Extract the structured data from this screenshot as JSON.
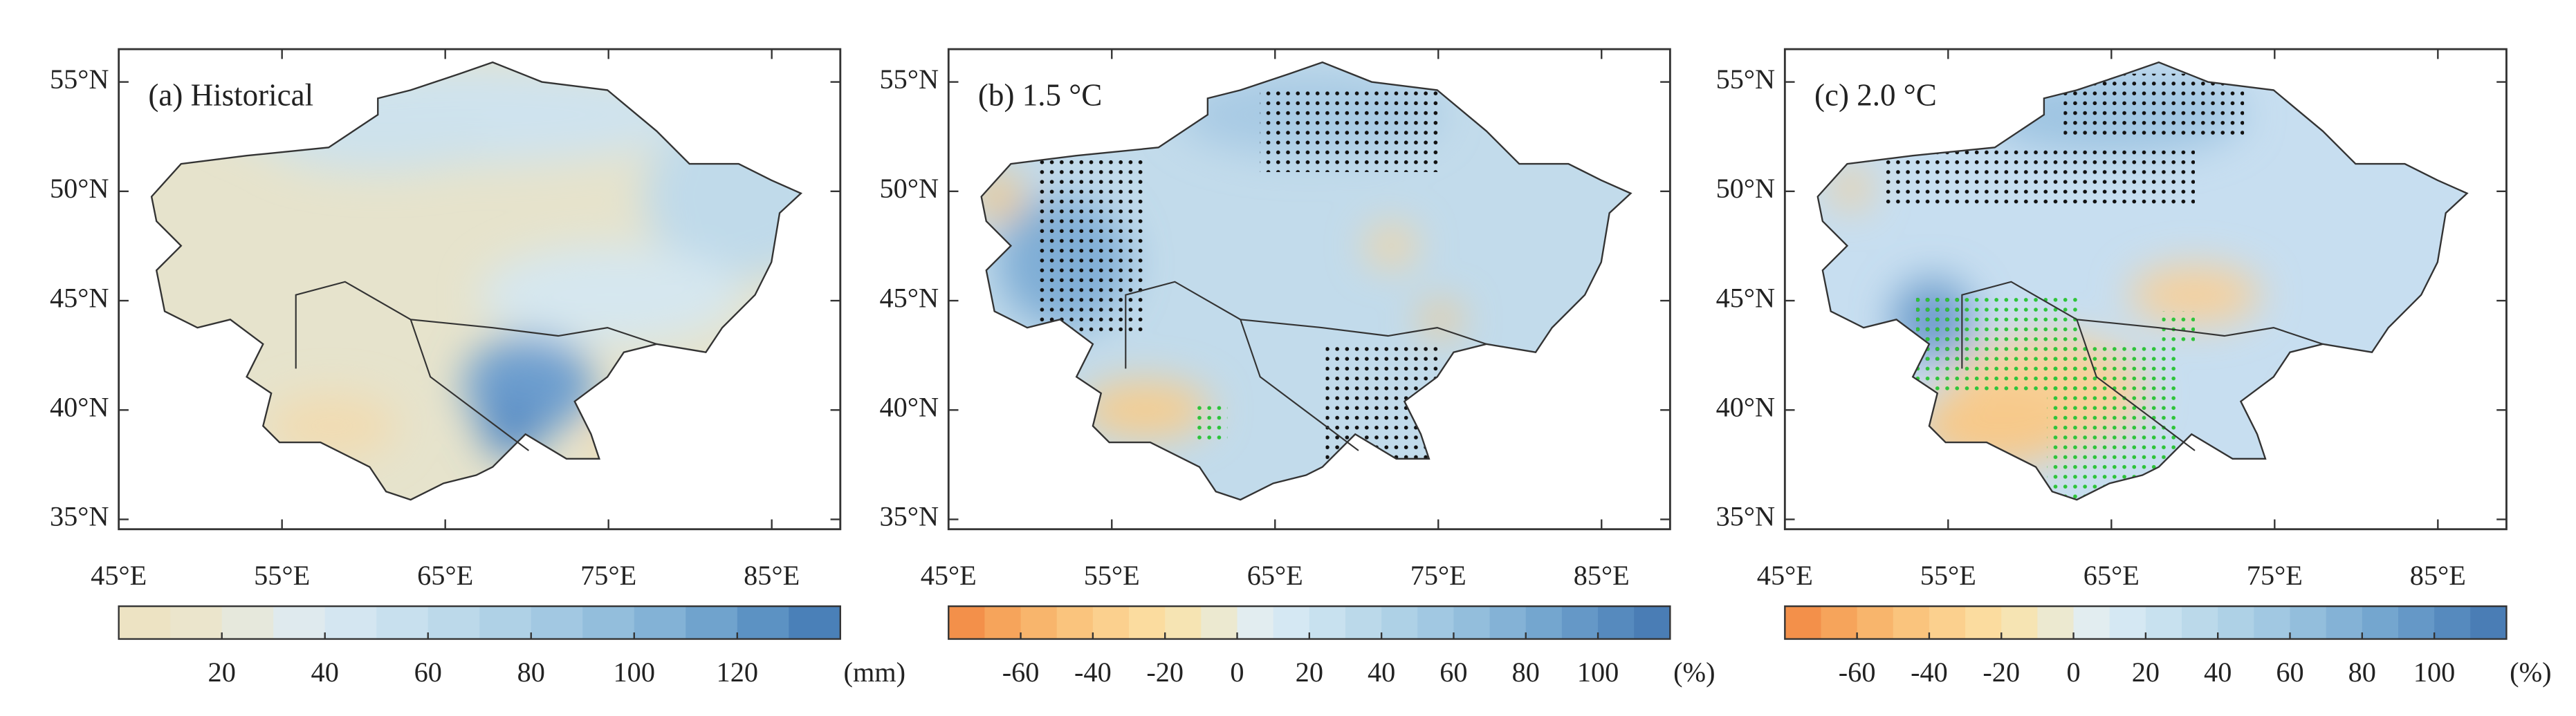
{
  "panels": [
    {
      "title": "(a) Historical",
      "lon_range": [
        45,
        89.2
      ],
      "lat_range": [
        34.55,
        56.5
      ],
      "lon_ticks": [
        {
          "value": 45,
          "label": "45°E"
        },
        {
          "value": 55,
          "label": "55°E"
        },
        {
          "value": 65,
          "label": "65°E"
        },
        {
          "value": 75,
          "label": "75°E"
        },
        {
          "value": 85,
          "label": "85°E"
        }
      ],
      "lat_ticks": [
        {
          "value": 55,
          "label": "55°N"
        },
        {
          "value": 50,
          "label": "50°N"
        },
        {
          "value": 45,
          "label": "45°N"
        },
        {
          "value": 40,
          "label": "40°N"
        },
        {
          "value": 35,
          "label": "35°N"
        }
      ],
      "colorbar": {
        "range": [
          0,
          140
        ],
        "ticks": [
          20,
          40,
          60,
          80,
          100,
          120
        ],
        "unit": "(mm)",
        "colors": [
          "#ede3c3",
          "#ebe5cc",
          "#e6e8dc",
          "#dfeaee",
          "#d4e6f1",
          "#c8e0ee",
          "#bcd9ea",
          "#afd1e6",
          "#a2c8e2",
          "#93bedc",
          "#83b2d6",
          "#70a3cd",
          "#5c92c3",
          "#4a80b8"
        ]
      }
    },
    {
      "title": "(b) 1.5 °C",
      "lon_range": [
        45,
        89.2
      ],
      "lat_range": [
        34.55,
        56.5
      ],
      "lon_ticks": [
        {
          "value": 45,
          "label": "45°E"
        },
        {
          "value": 55,
          "label": "55°E"
        },
        {
          "value": 65,
          "label": "65°E"
        },
        {
          "value": 75,
          "label": "75°E"
        },
        {
          "value": 85,
          "label": "85°E"
        }
      ],
      "lat_ticks": [
        {
          "value": 55,
          "label": "55°N"
        },
        {
          "value": 50,
          "label": "50°N"
        },
        {
          "value": 45,
          "label": "45°N"
        },
        {
          "value": 40,
          "label": "40°N"
        },
        {
          "value": 35,
          "label": "35°N"
        }
      ],
      "colorbar": {
        "range": [
          -80,
          120
        ],
        "ticks": [
          -60,
          -40,
          -20,
          0,
          20,
          40,
          60,
          80,
          100
        ],
        "unit": "(%)",
        "colors": [
          "#f3904a",
          "#f6a45b",
          "#f8b56c",
          "#fac47d",
          "#fbd08e",
          "#fbdc9f",
          "#f6e4b3",
          "#ece9d0",
          "#e2edf0",
          "#d5e8f3",
          "#c8e1ef",
          "#bbd9ea",
          "#aed1e6",
          "#a1c8e2",
          "#93bedc",
          "#84b2d6",
          "#74a6cf",
          "#6598c7",
          "#568abe",
          "#4a7db5"
        ]
      }
    },
    {
      "title": "(c) 2.0 °C",
      "lon_range": [
        45,
        89.2
      ],
      "lat_range": [
        34.55,
        56.5
      ],
      "lon_ticks": [
        {
          "value": 45,
          "label": "45°E"
        },
        {
          "value": 55,
          "label": "55°E"
        },
        {
          "value": 65,
          "label": "65°E"
        },
        {
          "value": 75,
          "label": "75°E"
        },
        {
          "value": 85,
          "label": "85°E"
        }
      ],
      "lat_ticks": [
        {
          "value": 55,
          "label": "55°N"
        },
        {
          "value": 50,
          "label": "50°N"
        },
        {
          "value": 45,
          "label": "45°N"
        },
        {
          "value": 40,
          "label": "40°N"
        },
        {
          "value": 35,
          "label": "35°N"
        }
      ],
      "colorbar": {
        "range": [
          -80,
          120
        ],
        "ticks": [
          -60,
          -40,
          -20,
          0,
          20,
          40,
          60,
          80,
          100
        ],
        "unit": "(%)",
        "colors": [
          "#f3904a",
          "#f6a45b",
          "#f8b56c",
          "#fac47d",
          "#fbd08e",
          "#fbdc9f",
          "#f6e4b3",
          "#ece9d0",
          "#e2edf0",
          "#d5e8f3",
          "#c8e1ef",
          "#bbd9ea",
          "#aed1e6",
          "#a1c8e2",
          "#93bedc",
          "#84b2d6",
          "#74a6cf",
          "#6598c7",
          "#568abe",
          "#4a7db5"
        ]
      }
    }
  ]
}
